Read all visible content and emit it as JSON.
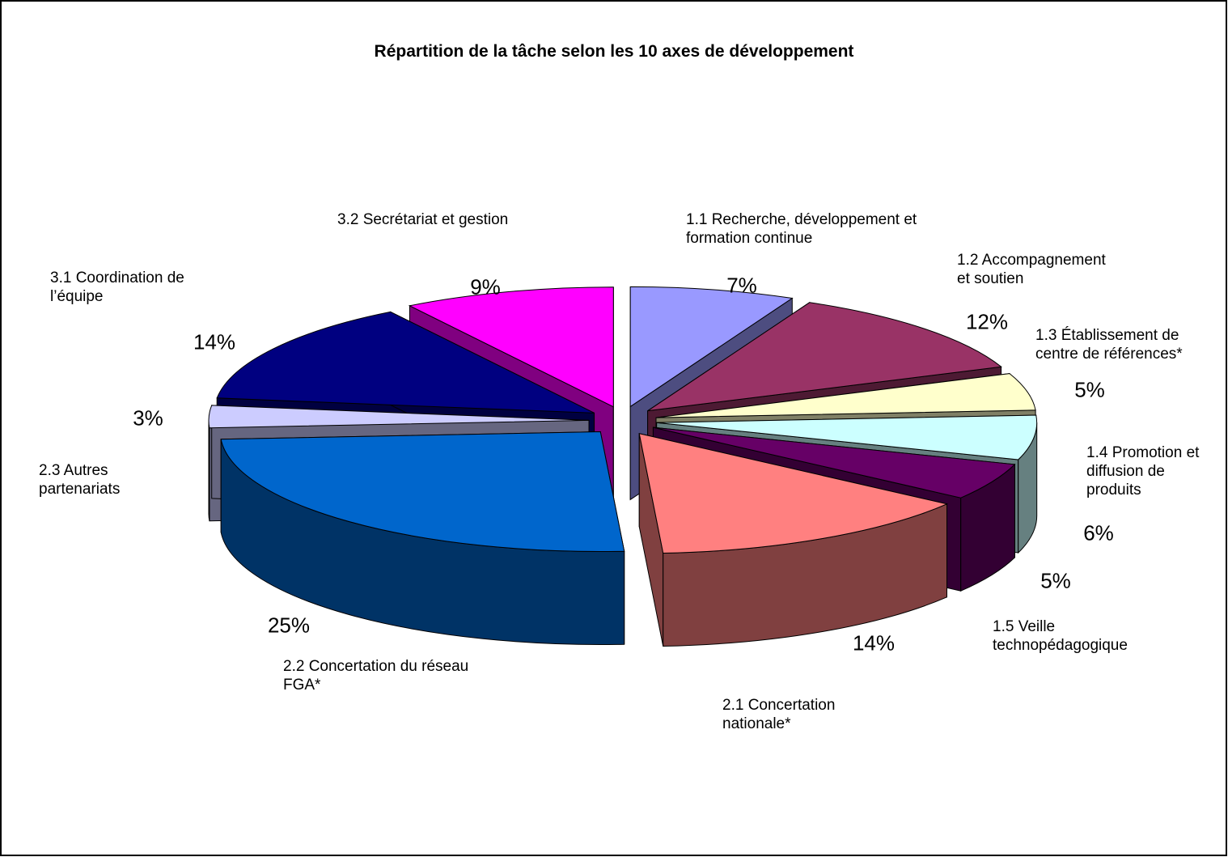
{
  "chart_data": {
    "type": "pie",
    "title": "Répartition de la tâche selon les 10 axes de développement",
    "categories": [
      "1.1 Recherche, développement et formation continue",
      "1.2 Accompagnement et soutien",
      "1.3 Établissement de centre de références*",
      "1.4 Promotion et diffusion de produits",
      "1.5 Veille technopédagogique",
      "2.1 Concertation nationale*",
      "2.2 Concertation du réseau FGA*",
      "2.3 Autres partenariats",
      "3.1 Coordination de l’équipe",
      "3.2 Secrétariat et gestion"
    ],
    "values": [
      7,
      12,
      5,
      6,
      5,
      14,
      25,
      3,
      14,
      9
    ],
    "value_labels": [
      "7%",
      "12%",
      "5%",
      "6%",
      "5%",
      "14%",
      "25%",
      "3%",
      "14%",
      "9%"
    ],
    "colors": [
      "#9999ff",
      "#993366",
      "#ffffcc",
      "#ccffff",
      "#660066",
      "#ff8080",
      "#0066cc",
      "#ccccff",
      "#000080",
      "#ff00ff"
    ]
  }
}
